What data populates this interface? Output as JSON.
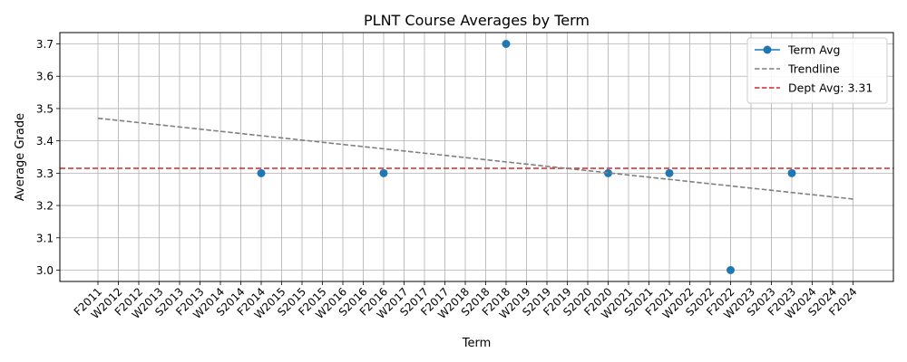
{
  "chart_data": {
    "type": "line",
    "title": "PLNT Course Averages by Term",
    "xlabel": "Term",
    "ylabel": "Average Grade",
    "ylim": [
      2.965,
      3.735
    ],
    "yticks": [
      3.0,
      3.1,
      3.2,
      3.3,
      3.4,
      3.5,
      3.6,
      3.7
    ],
    "ytick_labels": [
      "3.0",
      "3.1",
      "3.2",
      "3.3",
      "3.4",
      "3.5",
      "3.6",
      "3.7"
    ],
    "grid": true,
    "legend_position": "top-right",
    "categories": [
      "F2011",
      "W2012",
      "F2012",
      "W2013",
      "S2013",
      "F2013",
      "W2014",
      "S2014",
      "F2014",
      "W2015",
      "S2015",
      "F2015",
      "W2016",
      "S2016",
      "F2016",
      "W2017",
      "S2017",
      "F2017",
      "W2018",
      "S2018",
      "F2018",
      "W2019",
      "S2019",
      "F2019",
      "S2020",
      "F2020",
      "W2021",
      "S2021",
      "F2021",
      "W2022",
      "S2022",
      "F2022",
      "W2023",
      "S2023",
      "F2023",
      "W2024",
      "S2024",
      "F2024"
    ],
    "series": [
      {
        "name": "Term Avg",
        "style": "line-marker",
        "color": "#1f77b4",
        "points": [
          {
            "x": "F2014",
            "y": 3.3
          },
          {
            "x": "F2016",
            "y": 3.3
          },
          {
            "x": "F2018",
            "y": 3.7
          },
          {
            "x": "F2020",
            "y": 3.3
          },
          {
            "x": "F2021",
            "y": 3.3
          },
          {
            "x": "F2022",
            "y": 3.0
          },
          {
            "x": "F2023",
            "y": 3.3
          }
        ]
      },
      {
        "name": "Trendline",
        "style": "dashed",
        "color": "#808080",
        "points": [
          {
            "x": "F2011",
            "y": 3.47
          },
          {
            "x": "F2024",
            "y": 3.22
          }
        ]
      }
    ],
    "reference_lines": [
      {
        "name": "Dept Avg: 3.31",
        "y": 3.315,
        "style": "dashed",
        "color": "#d62728"
      }
    ]
  }
}
